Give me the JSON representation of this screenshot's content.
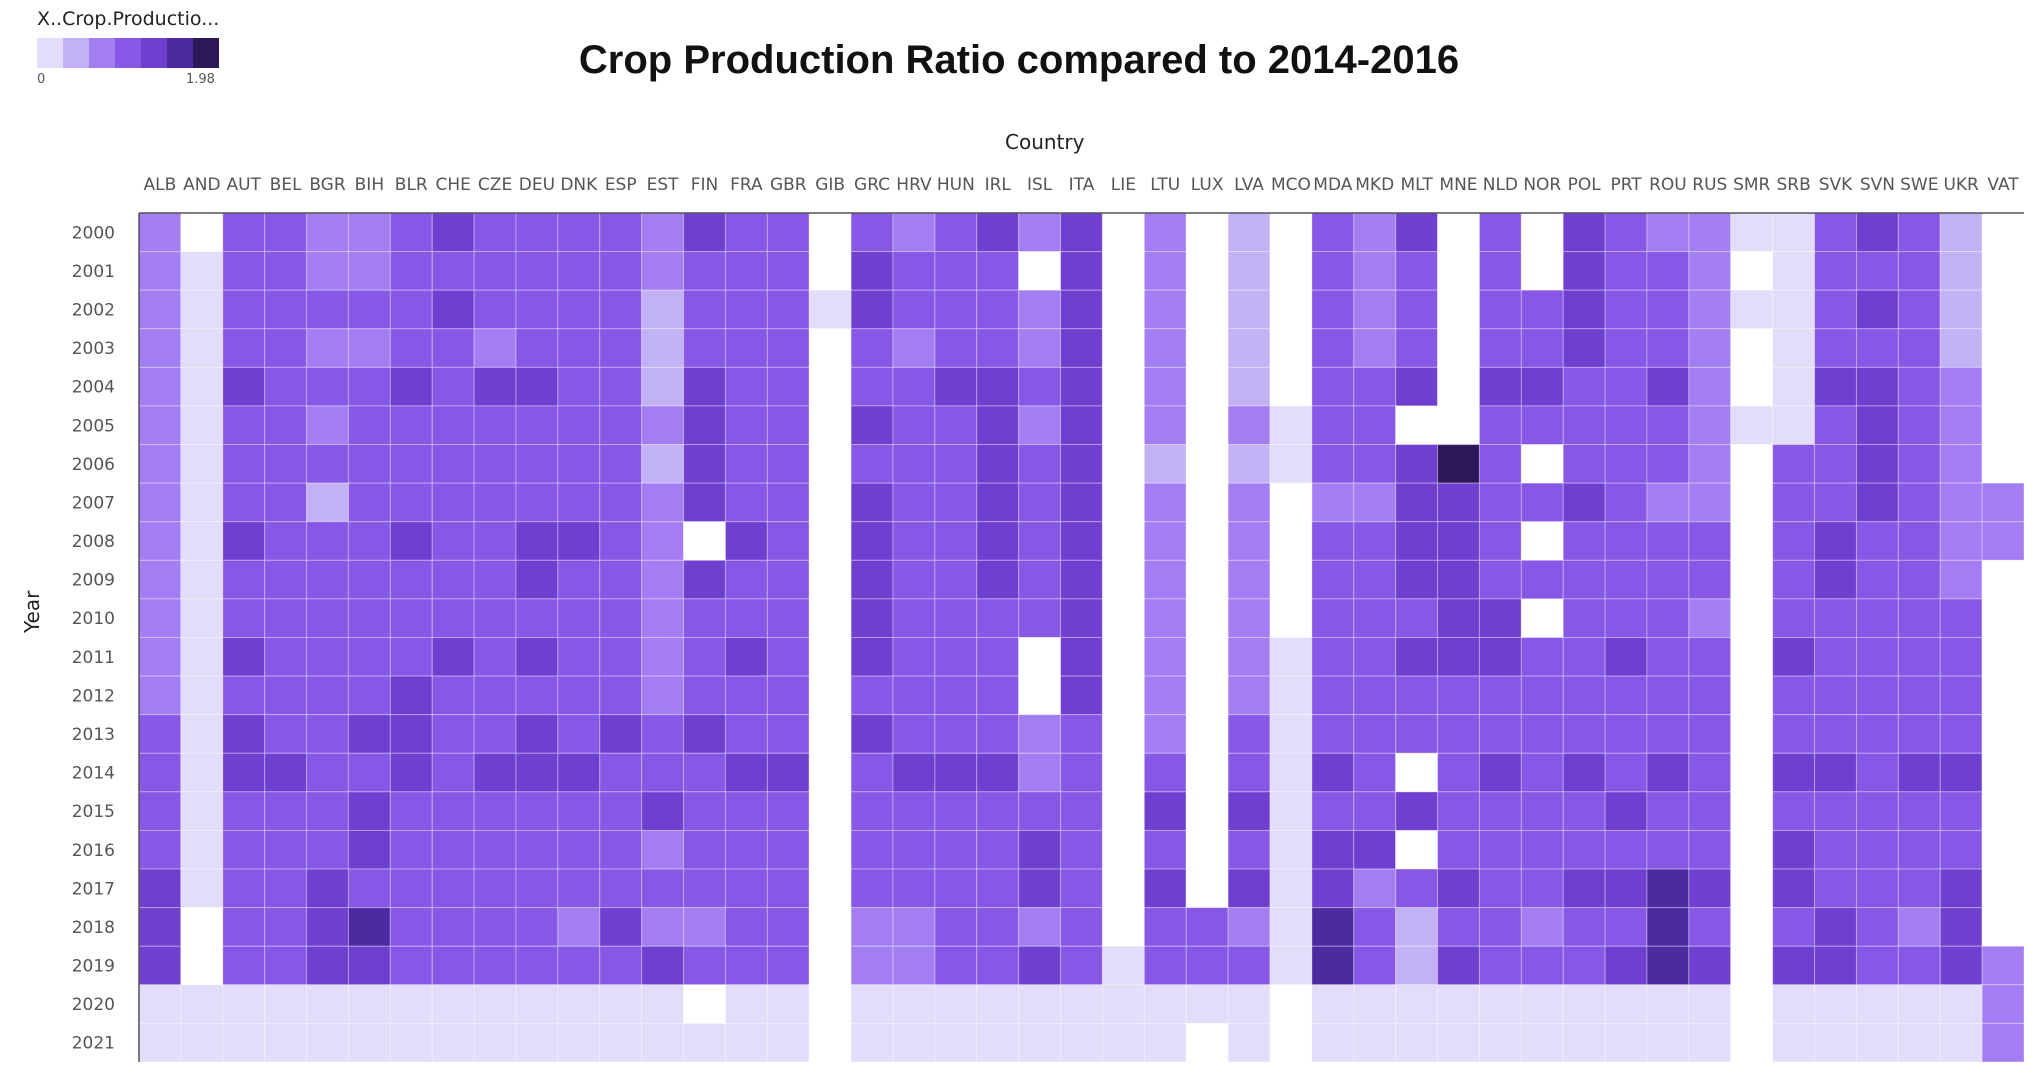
{
  "chart_data": {
    "type": "heatmap",
    "title": "Crop Production Ratio compared to 2014-2016",
    "xlabel": "Country",
    "ylabel": "Year",
    "legend": {
      "title": "X..Crop.Productio...",
      "min": "0",
      "max": "1.98",
      "placement": "top-left"
    },
    "colors": [
      "#e3dcfa",
      "#c3b1f6",
      "#a37ef2",
      "#8757e6",
      "#6f3fd0",
      "#4e2aa0",
      "#2c1a58"
    ],
    "x": [
      "ALB",
      "AND",
      "AUT",
      "BEL",
      "BGR",
      "BIH",
      "BLR",
      "CHE",
      "CZE",
      "DEU",
      "DNK",
      "ESP",
      "EST",
      "FIN",
      "FRA",
      "GBR",
      "GIB",
      "GRC",
      "HRV",
      "HUN",
      "IRL",
      "ISL",
      "ITA",
      "LIE",
      "LTU",
      "LUX",
      "LVA",
      "MCO",
      "MDA",
      "MKD",
      "MLT",
      "MNE",
      "NLD",
      "NOR",
      "POL",
      "PRT",
      "ROU",
      "RUS",
      "SMR",
      "SRB",
      "SVK",
      "SVN",
      "SWE",
      "UKR",
      "VAT"
    ],
    "y": [
      "2000",
      "2001",
      "2002",
      "2003",
      "2004",
      "2005",
      "2006",
      "2007",
      "2008",
      "2009",
      "2010",
      "2011",
      "2012",
      "2013",
      "2014",
      "2015",
      "2016",
      "2017",
      "2018",
      "2019",
      "2020",
      "2021"
    ],
    "rows": [
      [
        0.72,
        null,
        0.99,
        0.96,
        0.88,
        0.86,
        0.94,
        1.13,
        0.97,
        0.99,
        0.98,
        0.91,
        0.82,
        1.05,
        0.99,
        0.96,
        null,
        1.02,
        0.86,
        0.95,
        1.03,
        0.79,
        1.07,
        null,
        0.75,
        null,
        0.62,
        null,
        0.96,
        0.86,
        1.07,
        null,
        0.98,
        null,
        1.03,
        0.99,
        0.87,
        0.81,
        0.2,
        0.2,
        0.9,
        1.12,
        1.02,
        0.66,
        null
      ],
      [
        0.72,
        0.2,
        1.01,
        0.95,
        0.87,
        0.88,
        0.95,
        1.02,
        0.98,
        0.99,
        0.96,
        0.92,
        0.78,
        1.02,
        0.99,
        0.96,
        null,
        1.03,
        0.92,
        0.94,
        1.02,
        null,
        1.08,
        null,
        0.76,
        null,
        0.64,
        null,
        0.99,
        0.87,
        1.0,
        null,
        0.99,
        null,
        1.04,
        1.0,
        0.89,
        0.8,
        null,
        0.2,
        0.92,
        1.01,
        1.0,
        0.66,
        null
      ],
      [
        0.72,
        0.2,
        0.98,
        0.95,
        0.89,
        0.9,
        0.97,
        1.04,
        0.92,
        0.96,
        0.96,
        0.92,
        0.7,
        1.0,
        1.0,
        0.96,
        0.2,
        1.03,
        0.89,
        0.92,
        0.97,
        0.86,
        1.04,
        null,
        0.8,
        null,
        0.65,
        null,
        0.97,
        0.81,
        0.97,
        null,
        1.01,
        0.97,
        1.03,
        0.99,
        0.9,
        0.85,
        0.2,
        0.2,
        0.94,
        1.12,
        1.01,
        0.7,
        null
      ],
      [
        0.72,
        0.2,
        0.98,
        0.94,
        0.88,
        0.86,
        0.93,
        0.95,
        0.84,
        0.95,
        0.95,
        0.94,
        0.68,
        1.02,
        0.98,
        0.98,
        null,
        1.0,
        0.8,
        0.89,
        0.97,
        0.86,
        1.05,
        null,
        0.8,
        null,
        0.64,
        null,
        0.98,
        0.88,
        1.01,
        null,
        1.02,
        0.98,
        1.05,
        0.97,
        0.89,
        0.84,
        null,
        0.2,
        0.94,
        1.02,
        0.99,
        0.68,
        null
      ],
      [
        0.76,
        0.2,
        1.08,
        1.0,
        0.95,
        0.96,
        1.03,
        1.02,
        1.03,
        1.06,
        1.0,
        0.93,
        0.67,
        1.03,
        1.0,
        0.99,
        null,
        1.02,
        0.92,
        1.09,
        1.1,
        0.89,
        1.13,
        null,
        0.83,
        null,
        0.63,
        null,
        0.99,
        0.92,
        1.03,
        null,
        1.03,
        1.03,
        1.01,
        0.98,
        1.07,
        0.85,
        null,
        0.2,
        1.03,
        1.13,
        1.0,
        0.79,
        null
      ],
      [
        0.74,
        0.2,
        1.01,
        0.96,
        0.82,
        0.94,
        0.98,
        1.01,
        0.98,
        0.99,
        0.96,
        0.92,
        0.79,
        1.06,
        1.0,
        0.96,
        null,
        1.03,
        0.93,
        0.98,
        1.03,
        0.87,
        1.11,
        null,
        0.84,
        null,
        0.74,
        0.2,
        0.99,
        0.93,
        null,
        null,
        1.02,
        0.99,
        1.02,
        0.98,
        0.96,
        0.87,
        0.2,
        0.2,
        1.0,
        1.08,
        0.99,
        0.79,
        null
      ],
      [
        0.76,
        0.2,
        1.0,
        0.98,
        0.91,
        0.94,
        0.99,
        1.0,
        0.95,
        0.99,
        0.97,
        0.94,
        0.7,
        1.04,
        1.0,
        0.98,
        null,
        1.02,
        0.93,
        0.97,
        1.04,
        0.94,
        1.08,
        null,
        0.6,
        null,
        0.7,
        0.2,
        0.99,
        0.93,
        1.05,
        1.98,
        1.02,
        null,
        1.0,
        0.98,
        0.96,
        0.88,
        null,
        1.01,
        1.0,
        1.05,
        1.0,
        0.79,
        null
      ],
      [
        0.78,
        0.2,
        1.01,
        0.95,
        0.68,
        0.94,
        1.0,
        1.02,
        0.95,
        0.99,
        0.97,
        0.93,
        0.79,
        1.05,
        1.02,
        0.96,
        null,
        1.03,
        0.92,
        0.89,
        1.03,
        0.93,
        1.07,
        null,
        0.79,
        null,
        0.81,
        null,
        0.86,
        0.88,
        1.03,
        1.03,
        1.02,
        0.97,
        1.03,
        0.99,
        0.79,
        0.88,
        null,
        1.0,
        1.0,
        1.03,
        0.99,
        0.73,
        0.79
      ],
      [
        0.8,
        0.2,
        1.09,
        1.0,
        0.95,
        0.99,
        1.07,
        1.02,
        1.0,
        1.05,
        1.03,
        0.95,
        0.79,
        null,
        1.03,
        0.99,
        null,
        1.03,
        0.96,
        1.0,
        1.05,
        0.93,
        1.03,
        null,
        0.79,
        null,
        0.82,
        null,
        1.01,
        0.92,
        1.06,
        1.05,
        1.02,
        null,
        1.02,
        0.98,
        0.92,
        0.93,
        null,
        1.02,
        1.03,
        1.02,
        0.99,
        0.86,
        0.86
      ],
      [
        0.8,
        0.2,
        1.02,
        1.0,
        0.9,
        0.96,
        1.02,
        1.01,
        0.98,
        1.04,
        1.02,
        0.97,
        0.82,
        1.09,
        1.02,
        0.98,
        null,
        1.03,
        0.92,
        0.99,
        1.03,
        0.92,
        1.05,
        null,
        0.79,
        null,
        0.82,
        null,
        0.97,
        0.93,
        1.03,
        1.06,
        1.02,
        0.97,
        1.02,
        0.98,
        0.95,
        0.92,
        null,
        0.99,
        1.03,
        0.99,
        1.0,
        0.88,
        null
      ],
      [
        0.82,
        0.2,
        1.02,
        1.02,
        0.99,
        0.96,
        0.98,
        1.01,
        0.98,
        1.01,
        0.99,
        0.99,
        0.82,
        0.93,
        1.02,
        0.98,
        null,
        1.03,
        0.94,
        0.92,
        1.01,
        0.92,
        1.03,
        null,
        0.79,
        null,
        0.84,
        null,
        0.99,
        0.92,
        1.02,
        1.08,
        1.03,
        null,
        0.97,
        0.98,
        0.95,
        0.78,
        null,
        1.0,
        1.02,
        1.01,
        0.96,
        0.9,
        null
      ],
      [
        0.84,
        0.2,
        1.05,
        1.0,
        0.96,
        1.0,
        1.02,
        1.07,
        1.0,
        1.03,
        1.01,
        0.98,
        0.82,
        1.0,
        1.03,
        1.01,
        null,
        1.03,
        0.97,
        0.98,
        1.02,
        null,
        1.03,
        null,
        0.83,
        null,
        0.79,
        0.2,
        0.98,
        0.95,
        1.03,
        1.04,
        1.03,
        0.98,
        1.01,
        1.03,
        1.01,
        0.96,
        null,
        1.03,
        1.01,
        1.02,
        1.02,
        0.95,
        null
      ],
      [
        0.86,
        0.2,
        1.0,
        0.99,
        0.96,
        0.96,
        1.03,
        1.0,
        0.99,
        1.01,
        1.0,
        0.98,
        0.88,
        1.01,
        1.0,
        0.98,
        null,
        1.02,
        0.94,
        0.9,
        0.97,
        null,
        1.04,
        null,
        0.87,
        null,
        0.87,
        0.2,
        1.0,
        0.94,
        1.01,
        1.02,
        1.02,
        0.98,
        0.99,
        0.98,
        0.91,
        0.94,
        null,
        1.0,
        0.95,
        1.01,
        0.98,
        0.96,
        null
      ],
      [
        0.92,
        0.2,
        1.03,
        1.02,
        1.01,
        1.03,
        1.04,
        1.02,
        1.02,
        1.03,
        1.02,
        1.03,
        0.93,
        1.03,
        1.0,
        1.0,
        null,
        1.03,
        0.98,
        0.96,
        1.0,
        0.8,
        1.01,
        null,
        0.88,
        null,
        0.9,
        0.2,
        1.0,
        0.97,
        1.0,
        1.01,
        1.01,
        0.92,
        1.01,
        1.0,
        1.0,
        0.98,
        null,
        1.02,
        1.0,
        0.99,
        1.0,
        1.01,
        null
      ],
      [
        0.96,
        0.2,
        1.03,
        1.04,
        1.02,
        0.92,
        1.05,
        1.02,
        1.06,
        1.05,
        1.05,
        1.0,
        1.0,
        0.99,
        1.04,
        1.04,
        null,
        1.0,
        1.03,
        1.04,
        1.04,
        0.88,
        1.0,
        null,
        0.92,
        null,
        0.94,
        0.2,
        1.04,
        0.98,
        null,
        1.0,
        1.04,
        1.0,
        1.04,
        1.0,
        1.03,
        1.02,
        null,
        1.04,
        1.04,
        1.02,
        1.04,
        1.04,
        null
      ],
      [
        0.98,
        0.2,
        0.99,
        0.99,
        1.01,
        1.03,
        1.0,
        0.99,
        0.97,
        0.99,
        0.99,
        0.98,
        1.15,
        1.0,
        0.98,
        1.0,
        null,
        1.0,
        1.0,
        0.99,
        0.98,
        0.98,
        1.02,
        null,
        1.08,
        null,
        1.05,
        0.2,
        0.98,
        1.0,
        1.03,
        1.0,
        0.99,
        1.0,
        0.97,
        1.05,
        0.99,
        0.96,
        null,
        0.97,
        1.0,
        1.0,
        0.98,
        0.98,
        null
      ],
      [
        1.02,
        0.2,
        0.98,
        0.97,
        0.98,
        1.07,
        0.98,
        0.98,
        0.98,
        0.96,
        0.97,
        1.02,
        0.85,
        1.0,
        0.97,
        0.96,
        null,
        0.99,
        0.97,
        0.98,
        0.98,
        1.08,
        0.98,
        null,
        1.0,
        null,
        1.01,
        0.2,
        1.03,
        1.06,
        null,
        1.02,
        0.98,
        1.0,
        1.0,
        0.96,
        0.98,
        1.02,
        null,
        1.04,
        0.97,
        0.98,
        0.98,
        0.98,
        null
      ],
      [
        1.04,
        0.2,
        0.98,
        1.02,
        1.04,
        0.94,
        0.98,
        1.0,
        1.01,
        1.02,
        1.0,
        0.95,
        0.99,
        0.97,
        1.0,
        1.01,
        null,
        0.96,
        0.92,
        1.0,
        1.02,
        1.05,
        0.98,
        null,
        1.1,
        null,
        1.03,
        0.2,
        1.14,
        0.86,
        0.95,
        1.03,
        1.0,
        0.99,
        1.03,
        1.08,
        1.18,
        1.06,
        null,
        1.03,
        1.02,
        0.98,
        1.0,
        1.04,
        null
      ],
      [
        1.04,
        null,
        0.97,
        0.94,
        1.04,
        1.22,
        0.9,
        0.98,
        0.95,
        0.92,
        0.88,
        1.14,
        0.87,
        0.86,
        0.96,
        0.94,
        null,
        0.84,
        0.86,
        0.92,
        0.9,
        0.84,
        1.0,
        null,
        0.92,
        0.98,
        0.86,
        0.2,
        1.2,
        0.96,
        0.6,
        1.0,
        0.98,
        0.84,
        0.94,
        1.02,
        1.22,
        1.02,
        null,
        0.99,
        1.03,
        1.0,
        0.76,
        1.08,
        null
      ],
      [
        1.06,
        null,
        0.98,
        1.02,
        1.06,
        1.06,
        0.98,
        1.0,
        0.98,
        0.98,
        1.0,
        1.0,
        1.12,
        1.02,
        0.98,
        0.98,
        null,
        0.86,
        0.84,
        0.94,
        0.98,
        1.06,
        1.02,
        0.2,
        0.98,
        1.0,
        1.02,
        0.2,
        1.2,
        1.02,
        0.6,
        1.04,
        1.0,
        0.98,
        1.02,
        1.1,
        1.2,
        1.04,
        null,
        1.06,
        1.04,
        1.0,
        1.02,
        1.1,
        0.79
      ],
      [
        0.2,
        0.2,
        0.2,
        0.2,
        0.2,
        0.2,
        0.2,
        0.2,
        0.2,
        0.2,
        0.2,
        0.2,
        0.2,
        null,
        0.2,
        0.2,
        null,
        0.2,
        0.2,
        0.2,
        0.2,
        0.2,
        0.2,
        0.2,
        0.2,
        0.2,
        0.2,
        null,
        0.2,
        0.2,
        0.2,
        0.2,
        0.2,
        0.2,
        0.2,
        0.2,
        0.2,
        0.2,
        null,
        0.2,
        0.2,
        0.2,
        0.2,
        0.2,
        0.74
      ],
      [
        0.2,
        0.2,
        0.2,
        0.2,
        0.2,
        0.2,
        0.2,
        0.2,
        0.2,
        0.2,
        0.2,
        0.2,
        0.2,
        0.2,
        0.2,
        0.2,
        null,
        0.2,
        0.2,
        0.2,
        0.2,
        0.2,
        0.2,
        0.2,
        0.2,
        null,
        0.2,
        null,
        0.2,
        0.2,
        0.2,
        0.2,
        0.2,
        0.2,
        0.2,
        0.2,
        0.2,
        0.2,
        null,
        0.2,
        0.2,
        0.2,
        0.2,
        0.2,
        0.76
      ]
    ]
  }
}
